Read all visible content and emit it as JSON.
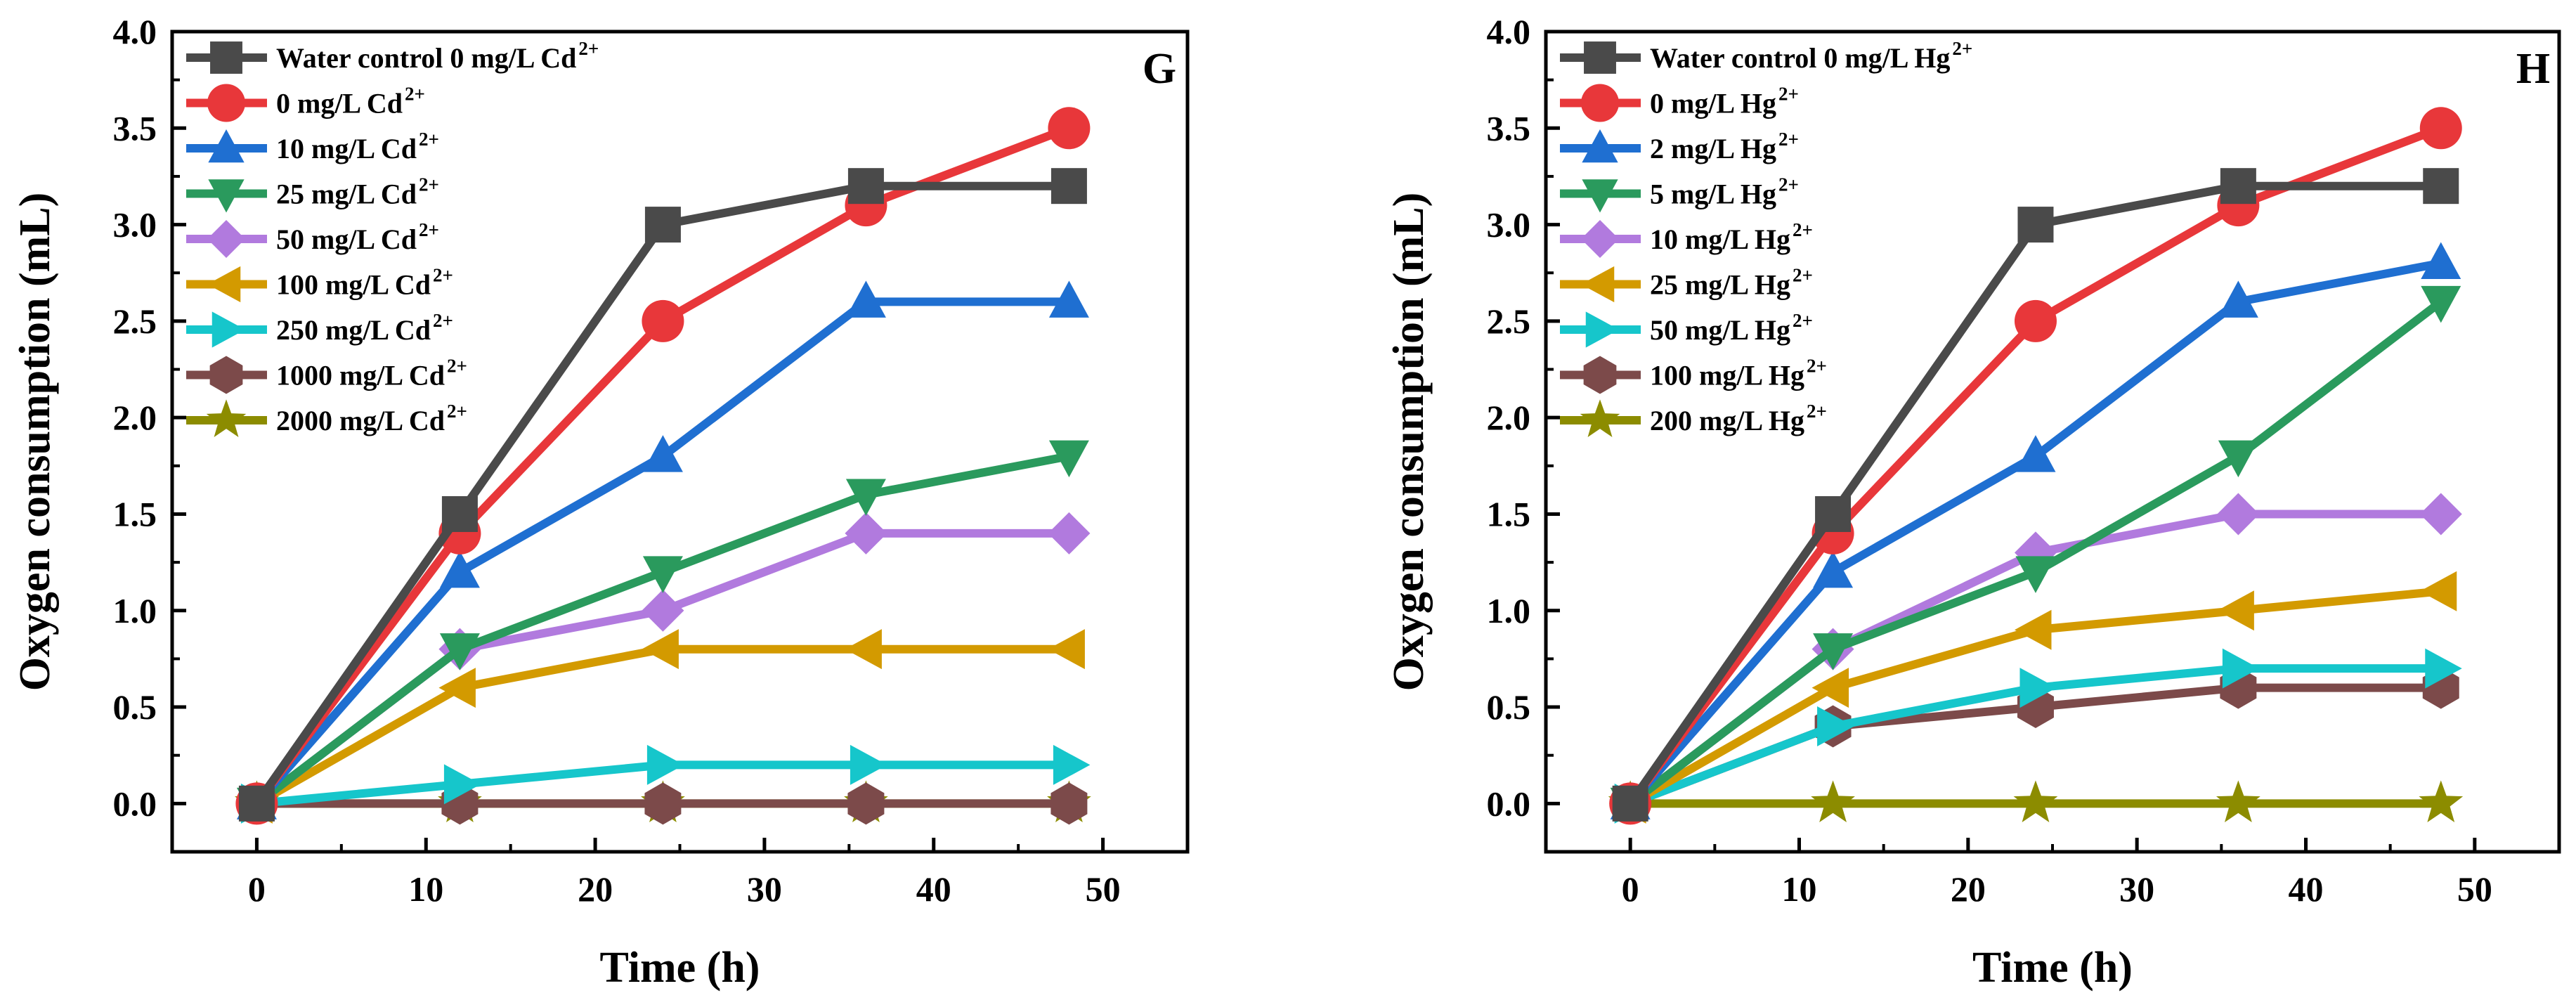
{
  "chart_data": [
    {
      "type": "line",
      "panel_label": "G",
      "xlabel": "Time (h)",
      "ylabel": "Oxygen consumption (mL)",
      "xlim": [
        -5,
        55
      ],
      "ylim": [
        -0.25,
        4.0
      ],
      "xticks": [
        "0",
        "10",
        "20",
        "30",
        "40",
        "50"
      ],
      "yticks": [
        "0.0",
        "0.5",
        "1.0",
        "1.5",
        "2.0",
        "2.5",
        "3.0",
        "3.5",
        "4.0"
      ],
      "x": [
        0,
        12,
        24,
        36,
        48
      ],
      "series": [
        {
          "name": "Water control 0 mg/L Cd",
          "ion_sup": "2+",
          "color": "#4a4a4a",
          "marker": "square",
          "values": [
            0,
            1.5,
            3.0,
            3.2,
            3.2
          ]
        },
        {
          "name": "0 mg/L Cd",
          "ion_sup": "2+",
          "color": "#e8373a",
          "marker": "circle",
          "values": [
            0,
            1.4,
            2.5,
            3.1,
            3.5
          ]
        },
        {
          "name": "10 mg/L Cd",
          "ion_sup": "2+",
          "color": "#1f6fd1",
          "marker": "triangle-up",
          "values": [
            0,
            1.2,
            1.8,
            2.6,
            2.6
          ]
        },
        {
          "name": "25 mg/L Cd",
          "ion_sup": "2+",
          "color": "#2a9a5d",
          "marker": "triangle-down",
          "values": [
            0,
            0.8,
            1.2,
            1.6,
            1.8
          ]
        },
        {
          "name": "50 mg/L Cd",
          "ion_sup": "2+",
          "color": "#b17ade",
          "marker": "diamond",
          "values": [
            0,
            0.8,
            1.0,
            1.4,
            1.4
          ]
        },
        {
          "name": "100 mg/L Cd",
          "ion_sup": "2+",
          "color": "#d39a00",
          "marker": "triangle-left",
          "values": [
            0,
            0.6,
            0.8,
            0.8,
            0.8
          ]
        },
        {
          "name": "250 mg/L Cd",
          "ion_sup": "2+",
          "color": "#16c6cb",
          "marker": "triangle-right",
          "values": [
            0,
            0.1,
            0.2,
            0.2,
            0.2
          ]
        },
        {
          "name": "1000 mg/L Cd",
          "ion_sup": "2+",
          "color": "#7c4a4a",
          "marker": "hexagon",
          "values": [
            0,
            0,
            0,
            0,
            0
          ]
        },
        {
          "name": "2000 mg/L Cd",
          "ion_sup": "2+",
          "color": "#8c8c00",
          "marker": "star",
          "values": [
            0,
            0,
            0,
            0,
            0
          ]
        }
      ]
    },
    {
      "type": "line",
      "panel_label": "H",
      "xlabel": "Time (h)",
      "ylabel": "Oxygen consumption (mL)",
      "xlim": [
        -5,
        55
      ],
      "ylim": [
        -0.25,
        4.0
      ],
      "xticks": [
        "0",
        "10",
        "20",
        "30",
        "40",
        "50"
      ],
      "yticks": [
        "0.0",
        "0.5",
        "1.0",
        "1.5",
        "2.0",
        "2.5",
        "3.0",
        "3.5",
        "4.0"
      ],
      "x": [
        0,
        12,
        24,
        36,
        48
      ],
      "series": [
        {
          "name": "Water control 0 mg/L Hg",
          "ion_sup": "2+",
          "color": "#4a4a4a",
          "marker": "square",
          "values": [
            0,
            1.5,
            3.0,
            3.2,
            3.2
          ]
        },
        {
          "name": "0 mg/L Hg",
          "ion_sup": "2+",
          "color": "#e8373a",
          "marker": "circle",
          "values": [
            0,
            1.4,
            2.5,
            3.1,
            3.5
          ]
        },
        {
          "name": "2 mg/L Hg",
          "ion_sup": "2+",
          "color": "#1f6fd1",
          "marker": "triangle-up",
          "values": [
            0,
            1.2,
            1.8,
            2.6,
            2.8
          ]
        },
        {
          "name": "5 mg/L Hg",
          "ion_sup": "2+",
          "color": "#2a9a5d",
          "marker": "triangle-down",
          "values": [
            0,
            0.8,
            1.2,
            1.8,
            2.6
          ]
        },
        {
          "name": "10 mg/L Hg",
          "ion_sup": "2+",
          "color": "#b17ade",
          "marker": "diamond",
          "values": [
            0,
            0.8,
            1.3,
            1.5,
            1.5
          ]
        },
        {
          "name": "25 mg/L Hg",
          "ion_sup": "2+",
          "color": "#d39a00",
          "marker": "triangle-left",
          "values": [
            0,
            0.6,
            0.9,
            1.0,
            1.1
          ]
        },
        {
          "name": "50 mg/L Hg",
          "ion_sup": "2+",
          "color": "#16c6cb",
          "marker": "triangle-right",
          "values": [
            0,
            0.4,
            0.6,
            0.7,
            0.7
          ]
        },
        {
          "name": "100 mg/L Hg",
          "ion_sup": "2+",
          "color": "#7c4a4a",
          "marker": "hexagon",
          "values": [
            0,
            0.4,
            0.5,
            0.6,
            0.6
          ]
        },
        {
          "name": "200 mg/L Hg",
          "ion_sup": "2+",
          "color": "#8c8c00",
          "marker": "star",
          "values": [
            0,
            0,
            0,
            0,
            0
          ]
        }
      ]
    }
  ]
}
